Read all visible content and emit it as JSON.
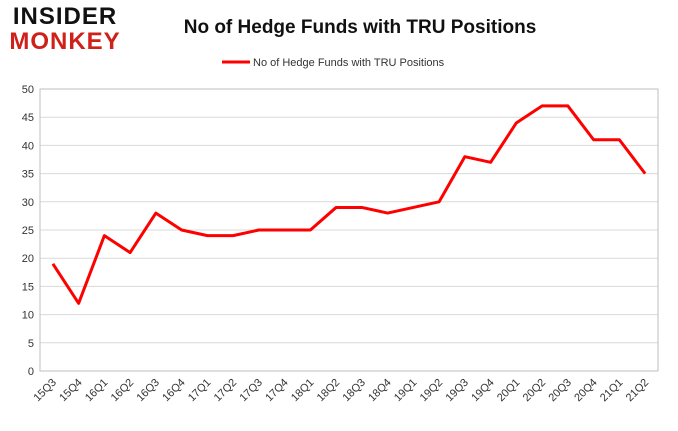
{
  "logo": {
    "top": "INSIDER",
    "bottom": "MONKEY"
  },
  "chart_data": {
    "type": "line",
    "title": "No of Hedge Funds with TRU Positions",
    "categories": [
      "15Q3",
      "15Q4",
      "16Q1",
      "16Q2",
      "16Q3",
      "16Q4",
      "17Q1",
      "17Q2",
      "17Q3",
      "17Q4",
      "18Q1",
      "18Q2",
      "18Q3",
      "18Q4",
      "19Q1",
      "19Q2",
      "19Q3",
      "19Q4",
      "20Q1",
      "20Q2",
      "20Q3",
      "20Q4",
      "21Q1",
      "21Q2"
    ],
    "series": [
      {
        "name": "No of Hedge Funds with TRU Positions",
        "color": "#ff0000",
        "values": [
          19,
          12,
          24,
          21,
          28,
          25,
          24,
          24,
          25,
          25,
          25,
          29,
          29,
          28,
          29,
          30,
          38,
          37,
          44,
          47,
          47,
          41,
          41,
          35
        ]
      }
    ],
    "ylim": [
      0,
      50
    ],
    "yticks": [
      0,
      5,
      10,
      15,
      20,
      25,
      30,
      35,
      40,
      45,
      50
    ],
    "grid": true,
    "legend": "top"
  }
}
